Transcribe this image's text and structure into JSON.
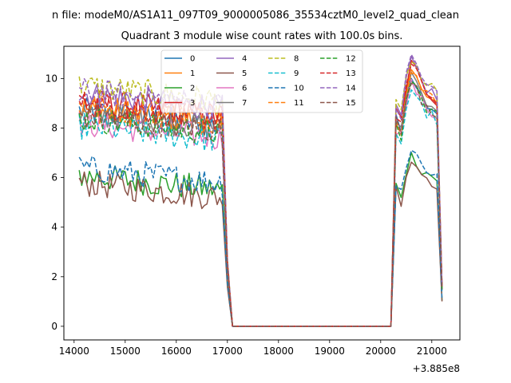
{
  "chart_data": {
    "type": "line",
    "suptitle": "n file: modeM0/AS1A11_097T09_9000005086_35534cztM0_level2_quad_clean",
    "title": "Quadrant 3 module wise count rates with 100.0s bins.",
    "xlabel": "",
    "ylabel": "",
    "x_offset_label": "+3.885e8",
    "xlim": [
      13800,
      21550
    ],
    "ylim": [
      -0.55,
      11.3
    ],
    "xticks": [
      14000,
      15000,
      16000,
      17000,
      18000,
      19000,
      20000,
      21000
    ],
    "xtick_labels": [
      "14000",
      "15000",
      "16000",
      "17000",
      "18000",
      "19000",
      "20000",
      "21000"
    ],
    "yticks": [
      0,
      2,
      4,
      6,
      8,
      10
    ],
    "ytick_labels": [
      "0",
      "2",
      "4",
      "6",
      "8",
      "10"
    ],
    "legend_position": "upper-center",
    "series": [
      {
        "name": "0",
        "color": "#1f77b4",
        "dash": "solid",
        "seg1_mean": 8.2,
        "seg2_peak": 10.1
      },
      {
        "name": "1",
        "color": "#ff7f0e",
        "dash": "solid",
        "seg1_mean": 8.3,
        "seg2_peak": 10.3
      },
      {
        "name": "2",
        "color": "#2ca02c",
        "dash": "solid",
        "seg1_mean": 5.6,
        "seg2_peak": 6.9
      },
      {
        "name": "3",
        "color": "#d62728",
        "dash": "solid",
        "seg1_mean": 8.6,
        "seg2_peak": 10.6
      },
      {
        "name": "4",
        "color": "#9467bd",
        "dash": "solid",
        "seg1_mean": 8.9,
        "seg2_peak": 10.7
      },
      {
        "name": "5",
        "color": "#8c564b",
        "dash": "solid",
        "seg1_mean": 5.3,
        "seg2_peak": 6.7
      },
      {
        "name": "6",
        "color": "#e377c2",
        "dash": "solid",
        "seg1_mean": 7.7,
        "seg2_peak": 9.8
      },
      {
        "name": "7",
        "color": "#7f7f7f",
        "dash": "solid",
        "seg1_mean": 8.1,
        "seg2_peak": 10.2
      },
      {
        "name": "8",
        "color": "#bcbd22",
        "dash": "dashed",
        "seg1_mean": 9.2,
        "seg2_peak": 10.8
      },
      {
        "name": "9",
        "color": "#17becf",
        "dash": "dashed",
        "seg1_mean": 7.6,
        "seg2_peak": 9.6
      },
      {
        "name": "10",
        "color": "#1f77b4",
        "dash": "dashed",
        "seg1_mean": 5.9,
        "seg2_peak": 7.1
      },
      {
        "name": "11",
        "color": "#ff7f0e",
        "dash": "dashed",
        "seg1_mean": 8.4,
        "seg2_peak": 10.4
      },
      {
        "name": "12",
        "color": "#2ca02c",
        "dash": "dashed",
        "seg1_mean": 7.9,
        "seg2_peak": 9.9
      },
      {
        "name": "13",
        "color": "#d62728",
        "dash": "dashed",
        "seg1_mean": 8.5,
        "seg2_peak": 10.5
      },
      {
        "name": "14",
        "color": "#9467bd",
        "dash": "dashed",
        "seg1_mean": 9.0,
        "seg2_peak": 10.9
      },
      {
        "name": "15",
        "color": "#8c564b",
        "dash": "dashed",
        "seg1_mean": 8.0,
        "seg2_peak": 10.0
      }
    ],
    "segments": {
      "active_1": [
        14100,
        16900
      ],
      "drop": [
        16900,
        17100
      ],
      "zero": [
        17100,
        20200
      ],
      "rise": [
        20200,
        20400
      ],
      "active_2": [
        20400,
        21100
      ],
      "end": 21200,
      "step": 50
    }
  }
}
